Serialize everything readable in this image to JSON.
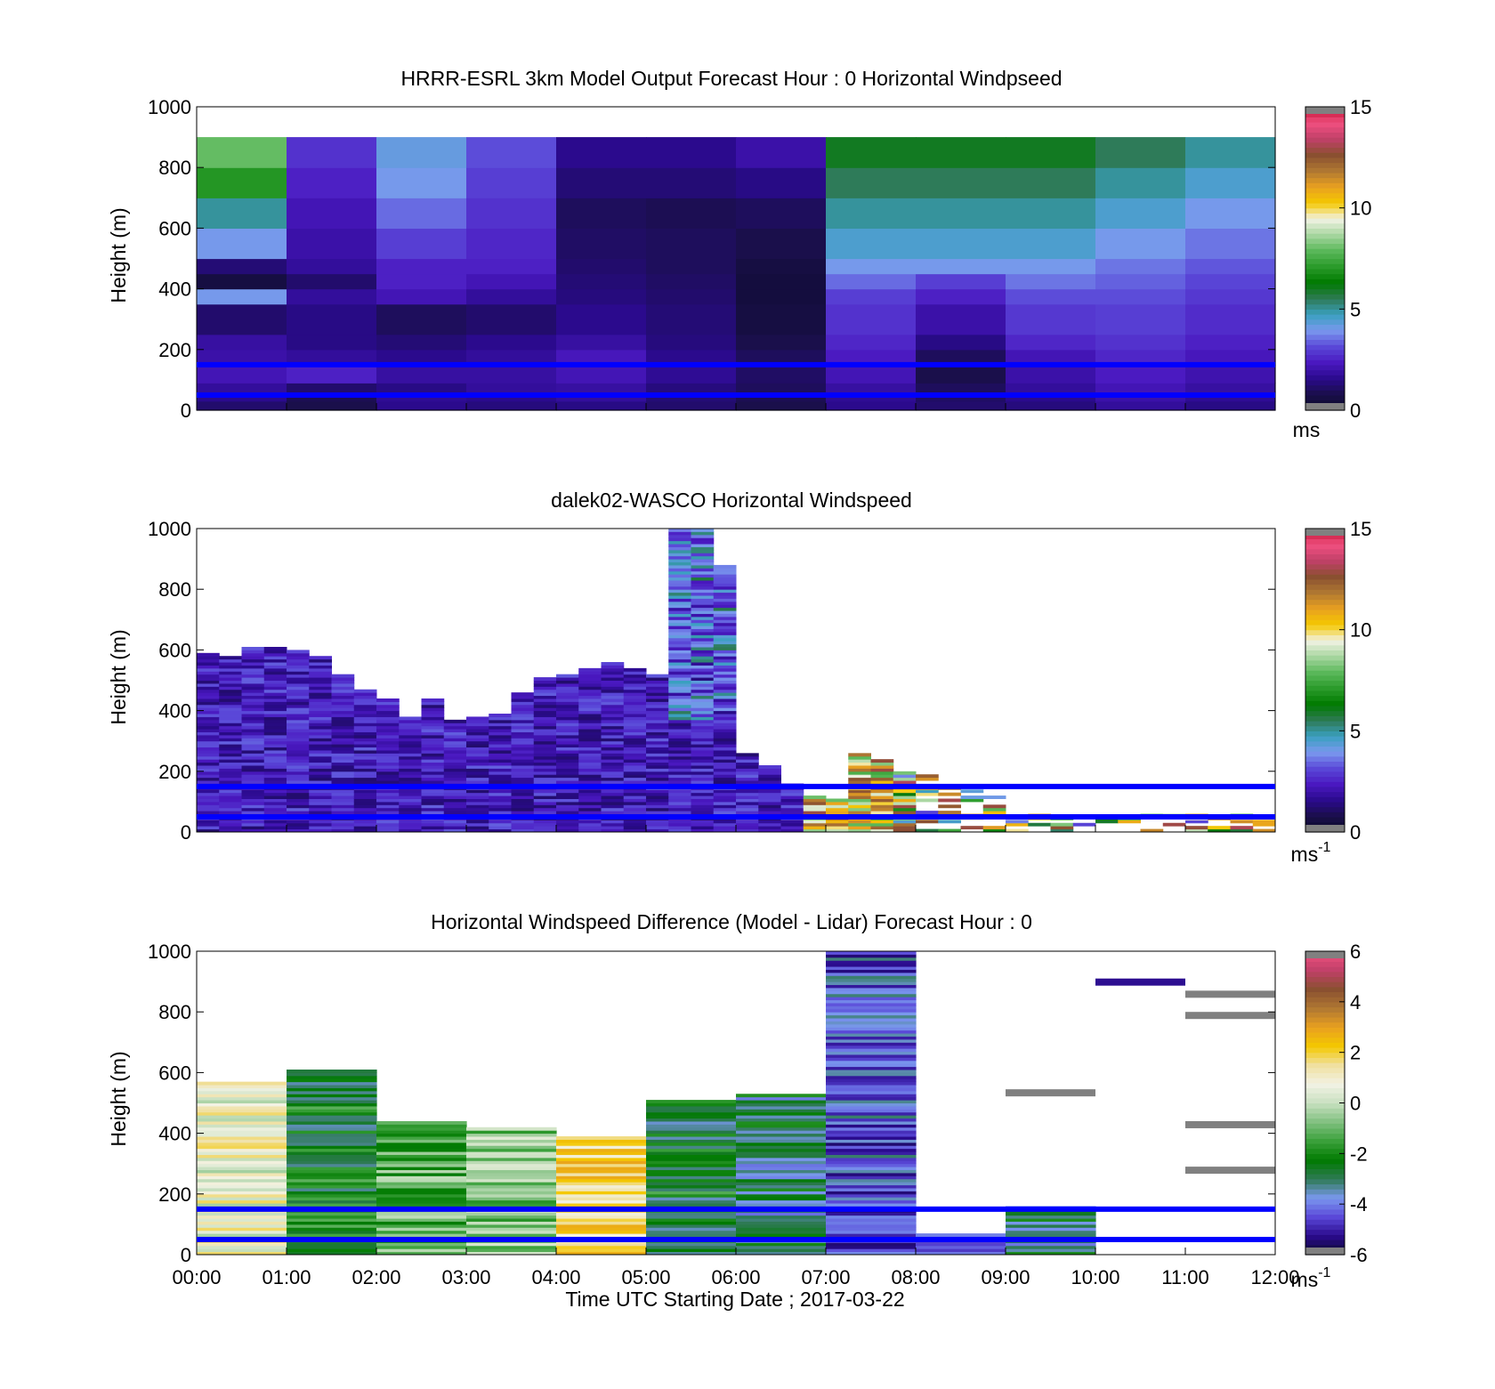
{
  "colors": {
    "speed_scale": [
      "#0a0a2a",
      "#1a0f4a",
      "#2a0a8c",
      "#4a18c0",
      "#5a48d8",
      "#7a98ee",
      "#3aa0c0",
      "#2e7a55",
      "#007a00",
      "#2a9a2a",
      "#5ab85a",
      "#a8d6a0",
      "#f2f2e4",
      "#f4c800",
      "#e8a020",
      "#b07832",
      "#8a5030",
      "#c04068",
      "#f05080",
      "#c01030"
    ],
    "diff_scale": [
      "#0a0a2a",
      "#2a0a8c",
      "#5a48d8",
      "#7a98ee",
      "#2e7a55",
      "#007a00",
      "#3aa03a",
      "#80c080",
      "#c8e0c0",
      "#f2f2e4",
      "#f0e0a0",
      "#f4c800",
      "#e8a020",
      "#b07832",
      "#8a5030",
      "#c04068",
      "#f05080"
    ],
    "reference_line": "#0000ff",
    "out_of_range": "#808080"
  },
  "chart_data": [
    {
      "type": "heatmap",
      "title": "HRRR-ESRL 3km Model Output   Forecast Hour : 0 Horizontal Windpseed",
      "ylabel": "Height (m)",
      "ylim": [
        0,
        1000
      ],
      "yticks": [
        "0",
        "200",
        "400",
        "600",
        "800",
        "1000"
      ],
      "colorbar": {
        "range": [
          0,
          15
        ],
        "ticks": [
          "0",
          "5",
          "10",
          "15"
        ],
        "unit": "ms"
      },
      "reference_lines_m": [
        50,
        150
      ],
      "x_hours": [
        0,
        1,
        2,
        3,
        4,
        5,
        6,
        7,
        8,
        9,
        10,
        11,
        12
      ],
      "level_bounds_m": [
        0,
        30,
        60,
        90,
        150,
        200,
        250,
        350,
        400,
        450,
        500,
        600,
        700,
        800,
        900,
        1000
      ],
      "values": [
        [
          1.2,
          1.6,
          1.8,
          2.2,
          2.0,
          1.9,
          1.2,
          4.0,
          0.6,
          1.3,
          4.0,
          5.0,
          7.0,
          8.0
        ],
        [
          0.8,
          0.9,
          1.2,
          2.5,
          1.8,
          1.5,
          1.5,
          1.8,
          1.2,
          1.8,
          2.0,
          2.2,
          2.5,
          2.8
        ],
        [
          1.6,
          1.7,
          1.5,
          1.9,
          1.6,
          1.3,
          1.0,
          2.2,
          2.5,
          2.5,
          3.0,
          3.5,
          4.0,
          4.2
        ],
        [
          1.4,
          1.6,
          1.8,
          1.9,
          1.8,
          1.6,
          1.2,
          1.8,
          2.2,
          2.5,
          2.6,
          2.8,
          3.0,
          3.2
        ],
        [
          1.5,
          1.8,
          1.9,
          2.2,
          2.3,
          1.9,
          1.6,
          1.4,
          1.3,
          1.2,
          1.1,
          1.0,
          1.3,
          1.6
        ],
        [
          1.2,
          1.3,
          1.4,
          1.7,
          1.6,
          1.4,
          1.3,
          1.2,
          1.1,
          1.0,
          1.0,
          0.9,
          1.3,
          1.6
        ],
        [
          0.8,
          0.9,
          1.0,
          1.1,
          1.0,
          0.8,
          0.6,
          0.5,
          0.5,
          0.6,
          0.8,
          1.0,
          1.5,
          2.0
        ],
        [
          1.6,
          1.7,
          1.9,
          2.2,
          2.4,
          2.6,
          2.8,
          3.0,
          3.5,
          4.0,
          4.5,
          5.0,
          5.5,
          6.0
        ],
        [
          1.2,
          1.1,
          1.0,
          0.8,
          1.0,
          1.5,
          2.0,
          2.5,
          3.0,
          4.0,
          4.5,
          5.0,
          5.5,
          6.0
        ],
        [
          1.4,
          1.6,
          1.8,
          2.0,
          2.2,
          2.6,
          2.9,
          3.2,
          3.6,
          4.0,
          4.5,
          5.0,
          5.5,
          6.0
        ],
        [
          1.8,
          2.0,
          2.2,
          2.4,
          2.6,
          2.8,
          3.0,
          3.2,
          3.4,
          3.6,
          4.0,
          4.5,
          5.0,
          5.5
        ],
        [
          1.5,
          1.7,
          1.9,
          2.1,
          2.3,
          2.5,
          2.7,
          2.9,
          3.1,
          3.3,
          3.6,
          4.0,
          4.5,
          5.0
        ]
      ]
    },
    {
      "type": "heatmap",
      "title": "dalek02-WASCO  Horizontal Windspeed",
      "ylabel": "Height (m)",
      "ylim": [
        0,
        1000
      ],
      "yticks": [
        "0",
        "200",
        "400",
        "600",
        "800",
        "1000"
      ],
      "colorbar": {
        "range": [
          0,
          15
        ],
        "ticks": [
          "0",
          "5",
          "10",
          "15"
        ],
        "unit": "ms",
        "unit_exponent": "-1"
      },
      "reference_lines_m": [
        50,
        150
      ],
      "x_hours": [
        0,
        1,
        2,
        3,
        4,
        5,
        6,
        7,
        8,
        9,
        10,
        11,
        12
      ],
      "column_width_h": 0.25,
      "data_top_m": [
        590,
        580,
        610,
        610,
        600,
        580,
        520,
        470,
        440,
        380,
        440,
        370,
        380,
        390,
        460,
        510,
        520,
        540,
        560,
        540,
        520,
        1000,
        1000,
        880,
        260,
        220,
        160,
        120,
        110,
        260,
        240,
        200,
        200,
        160,
        140,
        120,
        60,
        60,
        60,
        60,
        60,
        60,
        60,
        60,
        60,
        60,
        60,
        60
      ]
    },
    {
      "type": "heatmap",
      "title": "Horizontal Windspeed Difference (Model - Lidar) Forecast Hour : 0",
      "xlabel": "Time UTC  Starting Date ; 2017-03-22",
      "ylabel": "Height (m)",
      "xticks": [
        "00:00",
        "01:00",
        "02:00",
        "03:00",
        "04:00",
        "05:00",
        "06:00",
        "07:00",
        "08:00",
        "09:00",
        "10:00",
        "11:00",
        "12:00"
      ],
      "ylim": [
        0,
        1000
      ],
      "yticks": [
        "0",
        "200",
        "400",
        "600",
        "800",
        "1000"
      ],
      "colorbar": {
        "range": [
          -6,
          6
        ],
        "ticks": [
          "-6",
          "-4",
          "-2",
          "0",
          "2",
          "4",
          "6"
        ],
        "unit": "ms",
        "unit_exponent": "-1"
      },
      "reference_lines_m": [
        50,
        150
      ],
      "x_hours": [
        0,
        1,
        2,
        3,
        4,
        5,
        6,
        7,
        8,
        9,
        10,
        11,
        12
      ],
      "hourly_top_m": [
        570,
        610,
        440,
        420,
        390,
        510,
        530,
        1000,
        70,
        160,
        910,
        860
      ],
      "hourly_mean_diff": [
        0.8,
        -2.3,
        -1.2,
        -0.6,
        1.7,
        -2.4,
        -3.0,
        -4.3,
        -5.0,
        -3.0,
        -5.0,
        -5.5
      ],
      "sparse_segments": [
        {
          "hour": 9,
          "height_m": 525,
          "value": "out_of_range"
        },
        {
          "hour": 10,
          "height_m": 890,
          "value": -5.2
        },
        {
          "hour": 11,
          "height_m": 850,
          "value": "out_of_range"
        },
        {
          "hour": 11,
          "height_m": 780,
          "value": "out_of_range"
        },
        {
          "hour": 11,
          "height_m": 420,
          "value": "out_of_range"
        },
        {
          "hour": 11,
          "height_m": 270,
          "value": "out_of_range"
        }
      ]
    }
  ]
}
